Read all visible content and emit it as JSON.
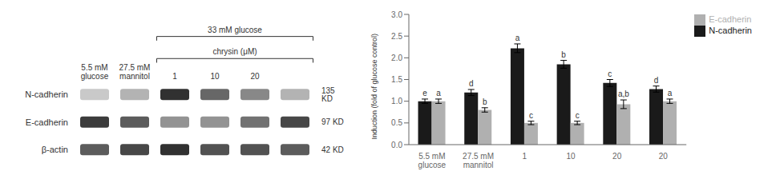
{
  "chart_data": [
    {
      "type": "heatmap",
      "categories": [
        "5.5 mM\nglucose",
        "27.5 mM\nmannitol",
        "1",
        "10",
        "20",
        null
      ],
      "row_labels": [
        "N-cadherin",
        "E-cadherin",
        "β-actin"
      ],
      "row_labels_right": [
        "135 KD",
        "97 KD",
        "42 KD"
      ],
      "values": [
        [
          0.25,
          0.35,
          0.95,
          0.7,
          0.55,
          0.35
        ],
        [
          0.9,
          0.75,
          0.5,
          0.5,
          0.65,
          0.85
        ],
        [
          0.75,
          0.85,
          0.95,
          0.8,
          0.8,
          0.75
        ]
      ],
      "annotations": [
        "33 mM glucose",
        "chrysin (μM)"
      ]
    },
    {
      "type": "bar",
      "categories": [
        "5.5 mM\nglucose",
        "27.5 mM\nmannitol",
        "1",
        "10",
        "20",
        "20 "
      ],
      "ylabel": "Induction (fold of glucose control)",
      "ylim": [
        0,
        3
      ],
      "yticks": [
        {
          "value": 0,
          "label": "0.0"
        },
        0.5,
        {
          "value": 1,
          "label": "1.0"
        },
        1.5,
        {
          "value": 2,
          "label": "2.0"
        },
        2.5,
        {
          "value": 3,
          "label": "3.0"
        }
      ],
      "series": [
        {
          "name": "N-cadherin",
          "color": "#1a1a1a",
          "values": [
            1.0,
            1.2,
            2.22,
            1.85,
            1.42,
            1.28
          ],
          "errors": [
            0.05,
            0.07,
            0.1,
            0.09,
            0.08,
            0.07
          ],
          "labels": [
            "e",
            "d",
            "a",
            "b",
            "c",
            "d"
          ]
        },
        {
          "name": "E-cadherin",
          "color": "#b0b0b0",
          "values": [
            1.0,
            0.8,
            0.5,
            0.5,
            0.93,
            1.0
          ],
          "errors": [
            0.05,
            0.05,
            0.04,
            0.04,
            0.1,
            0.05
          ],
          "labels": [
            "a",
            "b",
            "c",
            "c",
            "a,b",
            "a"
          ]
        }
      ],
      "legend": "upper right",
      "grid": false
    }
  ]
}
